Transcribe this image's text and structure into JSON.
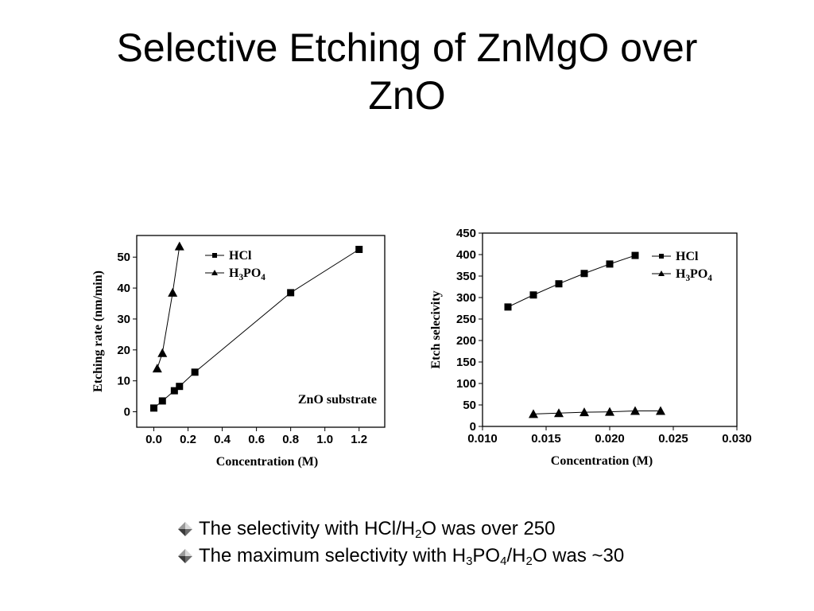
{
  "slide": {
    "title_line1": "Selective Etching of ZnMgO over",
    "title_line2": "ZnO",
    "bullets": [
      {
        "parts": [
          {
            "t": "The selectivity with HCl/H"
          },
          {
            "t": "2",
            "sub": true
          },
          {
            "t": "O was over 250"
          }
        ],
        "icon": "diamond-bullet-icon"
      },
      {
        "parts": [
          {
            "t": "The maximum selectivity with H"
          },
          {
            "t": "3",
            "sub": true
          },
          {
            "t": "PO"
          },
          {
            "t": "4",
            "sub": true
          },
          {
            "t": "/H"
          },
          {
            "t": "2",
            "sub": true
          },
          {
            "t": "O was ~30"
          }
        ],
        "icon": "diamond-bullet-icon"
      }
    ]
  },
  "chart_data": [
    {
      "type": "line",
      "xlabel": "Concentration (M)",
      "ylabel": "Etching rate (nm/min)",
      "xlim": [
        -0.1,
        1.35
      ],
      "ylim": [
        -5,
        57
      ],
      "xticks": [
        0.0,
        0.2,
        0.4,
        0.6,
        0.8,
        1.0,
        1.2
      ],
      "xtick_labels": [
        "0.0",
        "0.2",
        "0.4",
        "0.6",
        "0.8",
        "1.0",
        "1.2"
      ],
      "yticks": [
        0,
        10,
        20,
        30,
        40,
        50
      ],
      "ytick_labels": [
        "0",
        "10",
        "20",
        "30",
        "40",
        "50"
      ],
      "annotation": "ZnO substrate",
      "legend_position": "top-left",
      "series": [
        {
          "name": "HCl",
          "marker": "square",
          "x": [
            0.0,
            0.05,
            0.12,
            0.15,
            0.24,
            0.8,
            1.2
          ],
          "y": [
            1.2,
            3.5,
            6.8,
            8.2,
            12.8,
            38.5,
            52.5
          ]
        },
        {
          "name": "H3PO4",
          "name_parts": [
            {
              "t": "H"
            },
            {
              "t": "3",
              "sub": true
            },
            {
              "t": "PO"
            },
            {
              "t": "4",
              "sub": true
            }
          ],
          "marker": "triangle",
          "x": [
            0.02,
            0.05,
            0.11,
            0.15
          ],
          "y": [
            14.0,
            19.0,
            38.5,
            53.5
          ]
        }
      ]
    },
    {
      "type": "line",
      "xlabel": "Concentration (M)",
      "ylabel": "Etch selecivity",
      "xlim": [
        0.01,
        0.03
      ],
      "ylim": [
        0,
        450
      ],
      "xticks": [
        0.01,
        0.015,
        0.02,
        0.025,
        0.03
      ],
      "xtick_labels": [
        "0.010",
        "0.015",
        "0.020",
        "0.025",
        "0.030"
      ],
      "yticks": [
        0,
        50,
        100,
        150,
        200,
        250,
        300,
        350,
        400,
        450
      ],
      "ytick_labels": [
        "0",
        "50",
        "100",
        "150",
        "200",
        "250",
        "300",
        "350",
        "400",
        "450"
      ],
      "legend_position": "top-right",
      "series": [
        {
          "name": "HCl",
          "marker": "square",
          "x": [
            0.012,
            0.014,
            0.016,
            0.018,
            0.02,
            0.022
          ],
          "y": [
            278,
            306,
            332,
            356,
            378,
            398
          ]
        },
        {
          "name": "H3PO4",
          "name_parts": [
            {
              "t": "H"
            },
            {
              "t": "3",
              "sub": true
            },
            {
              "t": "PO"
            },
            {
              "t": "4",
              "sub": true
            }
          ],
          "marker": "triangle",
          "x": [
            0.014,
            0.016,
            0.018,
            0.02,
            0.022,
            0.024
          ],
          "y": [
            29,
            31,
            33,
            34,
            36,
            36
          ]
        }
      ]
    }
  ]
}
